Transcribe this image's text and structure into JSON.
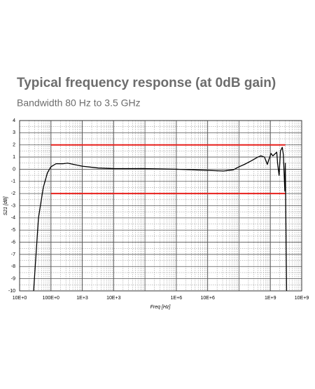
{
  "chart_data": {
    "type": "line",
    "title": "Typical frequency response (at 0dB gain)",
    "subtitle": "Bandwidth 80 Hz to 3.5 GHz",
    "x_label": "Freq [Hz]",
    "y_label": "S21 [dB]",
    "x_log": true,
    "grid": true,
    "xlim": [
      10,
      10000000000
    ],
    "ylim": [
      -10,
      4
    ],
    "xticks": [
      {
        "value": 10,
        "label": "10E+0"
      },
      {
        "value": 100,
        "label": "100E+0"
      },
      {
        "value": 1000,
        "label": "1E+3"
      },
      {
        "value": 10000,
        "label": "10E+3"
      },
      {
        "value": 1000000,
        "label": "1E+6"
      },
      {
        "value": 10000000,
        "label": "10E+6"
      },
      {
        "value": 1000000000,
        "label": "1E+9"
      },
      {
        "value": 10000000000,
        "label": "10E+9"
      }
    ],
    "yticks": [
      -10,
      -9,
      -8,
      -7,
      -6,
      -5,
      -4,
      -3,
      -2,
      -1,
      0,
      1,
      2,
      3,
      4
    ],
    "limit_lines": {
      "color": "#e8201c",
      "values": [
        2,
        -2
      ],
      "x": [
        100,
        3000000000
      ]
    },
    "series": [
      {
        "name": "S21",
        "color": "#000000",
        "x": [
          28,
          40,
          57,
          77,
          100,
          145,
          240,
          340,
          520,
          1000,
          3200,
          10000,
          100000,
          1000000,
          10000000,
          32000000,
          66000000,
          100000000,
          150000000,
          250000000,
          400000000,
          500000000,
          650000000,
          800000000,
          900000000,
          1050000000,
          1200000000,
          1600000000,
          1700000000,
          1900000000,
          2100000000,
          2400000000,
          2600000000,
          2900000000,
          3000000000,
          3300000000
        ],
        "values": [
          -10,
          -4,
          -1.5,
          -0.3,
          0.2,
          0.45,
          0.45,
          0.5,
          0.4,
          0.25,
          0.1,
          0.05,
          0.05,
          0,
          -0.1,
          -0.15,
          -0.05,
          0.2,
          0.4,
          0.7,
          1.0,
          1.1,
          1.0,
          0.4,
          0.8,
          1.3,
          1.1,
          1.4,
          0.5,
          -0.5,
          1.5,
          1.8,
          1.2,
          -1.8,
          0.5,
          -10
        ]
      }
    ]
  }
}
